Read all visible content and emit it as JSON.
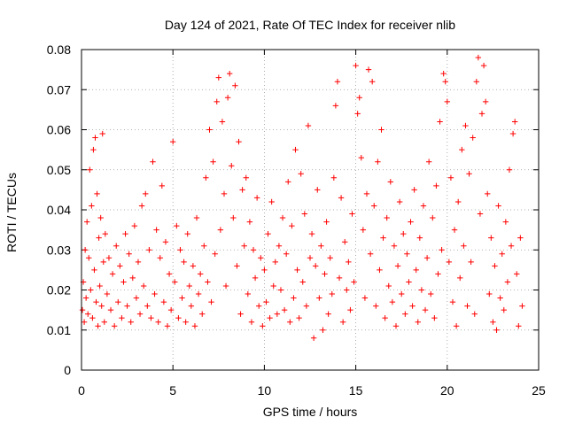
{
  "chart_data": {
    "type": "scatter",
    "title": "Day 124 of 2021, Rate Of TEC Index for receiver nlib",
    "xlabel": "GPS time / hours",
    "ylabel": "ROTI / TECUs",
    "xlim": [
      0,
      25
    ],
    "ylim": [
      0,
      0.08
    ],
    "xticks": [
      0,
      5,
      10,
      15,
      20,
      25
    ],
    "yticks": [
      0,
      0.01,
      0.02,
      0.03,
      0.04,
      0.05,
      0.06,
      0.07,
      0.08
    ],
    "xtick_labels": [
      "0",
      "5",
      "10",
      "15",
      "20",
      "25"
    ],
    "ytick_labels": [
      "0",
      "0.01",
      "0.02",
      "0.03",
      "0.04",
      "0.05",
      "0.06",
      "0.07",
      "0.08"
    ],
    "grid": true,
    "marker": "plus",
    "color": "#ff0000",
    "series": [
      {
        "points": [
          [
            0.05,
            0.015
          ],
          [
            0.1,
            0.022
          ],
          [
            0.15,
            0.012
          ],
          [
            0.2,
            0.03
          ],
          [
            0.25,
            0.018
          ],
          [
            0.3,
            0.037
          ],
          [
            0.35,
            0.014
          ],
          [
            0.4,
            0.028
          ],
          [
            0.45,
            0.05
          ],
          [
            0.5,
            0.02
          ],
          [
            0.55,
            0.041
          ],
          [
            0.6,
            0.013
          ],
          [
            0.65,
            0.055
          ],
          [
            0.7,
            0.025
          ],
          [
            0.75,
            0.058
          ],
          [
            0.8,
            0.017
          ],
          [
            0.85,
            0.044
          ],
          [
            0.9,
            0.011
          ],
          [
            0.95,
            0.033
          ],
          [
            1.0,
            0.021
          ],
          [
            1.05,
            0.038
          ],
          [
            1.1,
            0.016
          ],
          [
            1.15,
            0.059
          ],
          [
            1.2,
            0.027
          ],
          [
            1.25,
            0.012
          ],
          [
            1.3,
            0.034
          ],
          [
            1.4,
            0.019
          ],
          [
            1.5,
            0.028
          ],
          [
            1.6,
            0.015
          ],
          [
            1.7,
            0.024
          ],
          [
            1.8,
            0.011
          ],
          [
            1.9,
            0.031
          ],
          [
            2.0,
            0.017
          ],
          [
            2.1,
            0.026
          ],
          [
            2.2,
            0.013
          ],
          [
            2.3,
            0.022
          ],
          [
            2.4,
            0.034
          ],
          [
            2.5,
            0.016
          ],
          [
            2.6,
            0.029
          ],
          [
            2.7,
            0.012
          ],
          [
            2.8,
            0.023
          ],
          [
            2.9,
            0.036
          ],
          [
            3.0,
            0.018
          ],
          [
            3.1,
            0.027
          ],
          [
            3.2,
            0.014
          ],
          [
            3.3,
            0.041
          ],
          [
            3.4,
            0.021
          ],
          [
            3.5,
            0.044
          ],
          [
            3.6,
            0.016
          ],
          [
            3.7,
            0.03
          ],
          [
            3.8,
            0.013
          ],
          [
            3.9,
            0.052
          ],
          [
            4.0,
            0.019
          ],
          [
            4.1,
            0.035
          ],
          [
            4.2,
            0.012
          ],
          [
            4.3,
            0.028
          ],
          [
            4.4,
            0.046
          ],
          [
            4.5,
            0.017
          ],
          [
            4.6,
            0.032
          ],
          [
            4.7,
            0.011
          ],
          [
            4.8,
            0.024
          ],
          [
            4.9,
            0.015
          ],
          [
            5.0,
            0.057
          ],
          [
            5.1,
            0.022
          ],
          [
            5.2,
            0.036
          ],
          [
            5.3,
            0.013
          ],
          [
            5.4,
            0.03
          ],
          [
            5.5,
            0.018
          ],
          [
            5.6,
            0.027
          ],
          [
            5.7,
            0.012
          ],
          [
            5.8,
            0.034
          ],
          [
            5.9,
            0.021
          ],
          [
            6.0,
            0.016
          ],
          [
            6.1,
            0.026
          ],
          [
            6.2,
            0.011
          ],
          [
            6.3,
            0.038
          ],
          [
            6.4,
            0.019
          ],
          [
            6.5,
            0.024
          ],
          [
            6.6,
            0.014
          ],
          [
            6.7,
            0.031
          ],
          [
            6.8,
            0.048
          ],
          [
            6.9,
            0.022
          ],
          [
            7.0,
            0.06
          ],
          [
            7.1,
            0.017
          ],
          [
            7.2,
            0.052
          ],
          [
            7.3,
            0.029
          ],
          [
            7.4,
            0.067
          ],
          [
            7.5,
            0.073
          ],
          [
            7.6,
            0.035
          ],
          [
            7.7,
            0.062
          ],
          [
            7.8,
            0.044
          ],
          [
            7.9,
            0.021
          ],
          [
            8.0,
            0.068
          ],
          [
            8.1,
            0.074
          ],
          [
            8.2,
            0.051
          ],
          [
            8.3,
            0.038
          ],
          [
            8.4,
            0.071
          ],
          [
            8.5,
            0.026
          ],
          [
            8.6,
            0.057
          ],
          [
            8.7,
            0.014
          ],
          [
            8.8,
            0.045
          ],
          [
            8.9,
            0.031
          ],
          [
            9.0,
            0.048
          ],
          [
            9.1,
            0.019
          ],
          [
            9.2,
            0.037
          ],
          [
            9.3,
            0.012
          ],
          [
            9.4,
            0.03
          ],
          [
            9.5,
            0.023
          ],
          [
            9.6,
            0.043
          ],
          [
            9.7,
            0.016
          ],
          [
            9.8,
            0.028
          ],
          [
            9.9,
            0.011
          ],
          [
            10.0,
            0.025
          ],
          [
            10.1,
            0.017
          ],
          [
            10.2,
            0.034
          ],
          [
            10.3,
            0.013
          ],
          [
            10.4,
            0.042
          ],
          [
            10.5,
            0.021
          ],
          [
            10.6,
            0.027
          ],
          [
            10.7,
            0.014
          ],
          [
            10.8,
            0.031
          ],
          [
            10.9,
            0.02
          ],
          [
            11.0,
            0.038
          ],
          [
            11.1,
            0.015
          ],
          [
            11.2,
            0.029
          ],
          [
            11.3,
            0.047
          ],
          [
            11.4,
            0.012
          ],
          [
            11.5,
            0.036
          ],
          [
            11.6,
            0.018
          ],
          [
            11.7,
            0.055
          ],
          [
            11.8,
            0.025
          ],
          [
            11.9,
            0.013
          ],
          [
            12.0,
            0.049
          ],
          [
            12.1,
            0.022
          ],
          [
            12.2,
            0.039
          ],
          [
            12.3,
            0.016
          ],
          [
            12.4,
            0.061
          ],
          [
            12.5,
            0.028
          ],
          [
            12.6,
            0.034
          ],
          [
            12.7,
            0.008
          ],
          [
            12.8,
            0.026
          ],
          [
            12.9,
            0.045
          ],
          [
            13.0,
            0.018
          ],
          [
            13.1,
            0.031
          ],
          [
            13.2,
            0.01
          ],
          [
            13.3,
            0.024
          ],
          [
            13.4,
            0.037
          ],
          [
            13.5,
            0.014
          ],
          [
            13.6,
            0.028
          ],
          [
            13.7,
            0.019
          ],
          [
            13.8,
            0.048
          ],
          [
            13.9,
            0.066
          ],
          [
            14.0,
            0.072
          ],
          [
            14.1,
            0.023
          ],
          [
            14.2,
            0.043
          ],
          [
            14.3,
            0.012
          ],
          [
            14.4,
            0.032
          ],
          [
            14.5,
            0.02
          ],
          [
            14.6,
            0.027
          ],
          [
            14.7,
            0.015
          ],
          [
            14.8,
            0.039
          ],
          [
            14.9,
            0.022
          ],
          [
            15.0,
            0.076
          ],
          [
            15.1,
            0.064
          ],
          [
            15.2,
            0.068
          ],
          [
            15.3,
            0.053
          ],
          [
            15.4,
            0.035
          ],
          [
            15.5,
            0.018
          ],
          [
            15.6,
            0.044
          ],
          [
            15.7,
            0.075
          ],
          [
            15.8,
            0.029
          ],
          [
            15.9,
            0.072
          ],
          [
            16.0,
            0.041
          ],
          [
            16.1,
            0.016
          ],
          [
            16.2,
            0.052
          ],
          [
            16.3,
            0.025
          ],
          [
            16.4,
            0.06
          ],
          [
            16.5,
            0.033
          ],
          [
            16.6,
            0.013
          ],
          [
            16.7,
            0.038
          ],
          [
            16.8,
            0.021
          ],
          [
            16.9,
            0.047
          ],
          [
            17.0,
            0.017
          ],
          [
            17.1,
            0.031
          ],
          [
            17.2,
            0.011
          ],
          [
            17.3,
            0.026
          ],
          [
            17.4,
            0.042
          ],
          [
            17.5,
            0.019
          ],
          [
            17.6,
            0.034
          ],
          [
            17.7,
            0.014
          ],
          [
            17.8,
            0.029
          ],
          [
            17.9,
            0.022
          ],
          [
            18.0,
            0.037
          ],
          [
            18.1,
            0.016
          ],
          [
            18.2,
            0.045
          ],
          [
            18.3,
            0.025
          ],
          [
            18.4,
            0.012
          ],
          [
            18.5,
            0.033
          ],
          [
            18.6,
            0.02
          ],
          [
            18.7,
            0.041
          ],
          [
            18.8,
            0.015
          ],
          [
            18.9,
            0.028
          ],
          [
            19.0,
            0.052
          ],
          [
            19.1,
            0.019
          ],
          [
            19.2,
            0.038
          ],
          [
            19.3,
            0.013
          ],
          [
            19.4,
            0.046
          ],
          [
            19.5,
            0.024
          ],
          [
            19.6,
            0.062
          ],
          [
            19.7,
            0.03
          ],
          [
            19.8,
            0.074
          ],
          [
            19.9,
            0.072
          ],
          [
            20.0,
            0.067
          ],
          [
            20.1,
            0.027
          ],
          [
            20.2,
            0.048
          ],
          [
            20.3,
            0.017
          ],
          [
            20.4,
            0.035
          ],
          [
            20.5,
            0.011
          ],
          [
            20.6,
            0.042
          ],
          [
            20.7,
            0.023
          ],
          [
            20.8,
            0.055
          ],
          [
            20.9,
            0.031
          ],
          [
            21.0,
            0.061
          ],
          [
            21.1,
            0.016
          ],
          [
            21.2,
            0.049
          ],
          [
            21.3,
            0.027
          ],
          [
            21.4,
            0.058
          ],
          [
            21.5,
            0.014
          ],
          [
            21.6,
            0.072
          ],
          [
            21.7,
            0.078
          ],
          [
            21.8,
            0.039
          ],
          [
            21.9,
            0.064
          ],
          [
            22.0,
            0.076
          ],
          [
            22.1,
            0.067
          ],
          [
            22.2,
            0.044
          ],
          [
            22.3,
            0.019
          ],
          [
            22.4,
            0.033
          ],
          [
            22.5,
            0.012
          ],
          [
            22.6,
            0.026
          ],
          [
            22.7,
            0.01
          ],
          [
            22.8,
            0.041
          ],
          [
            22.9,
            0.018
          ],
          [
            23.0,
            0.029
          ],
          [
            23.1,
            0.015
          ],
          [
            23.2,
            0.037
          ],
          [
            23.3,
            0.022
          ],
          [
            23.4,
            0.05
          ],
          [
            23.5,
            0.031
          ],
          [
            23.6,
            0.059
          ],
          [
            23.7,
            0.062
          ],
          [
            23.8,
            0.024
          ],
          [
            23.9,
            0.011
          ],
          [
            24.0,
            0.033
          ],
          [
            24.1,
            0.016
          ]
        ]
      }
    ]
  }
}
